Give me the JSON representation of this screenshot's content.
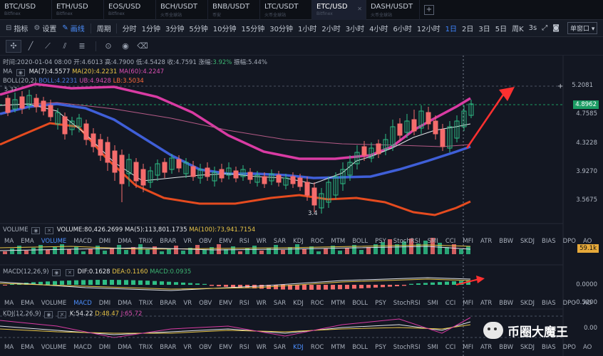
{
  "tabs": [
    {
      "pair": "BTC/USD",
      "sub": "Bitfinex"
    },
    {
      "pair": "ETH/USD",
      "sub": "Bitfinex"
    },
    {
      "pair": "EOS/USD",
      "sub": "Bitfinex"
    },
    {
      "pair": "BCH/USDT",
      "sub": "火币全球站"
    },
    {
      "pair": "BNB/USDT",
      "sub": "币安"
    },
    {
      "pair": "LTC/USDT",
      "sub": "火币全球站"
    },
    {
      "pair": "ETC/USD",
      "sub": "Bitfinex",
      "active": true
    },
    {
      "pair": "DASH/USDT",
      "sub": "火币全球站"
    }
  ],
  "tab_add": "+",
  "toolbar": {
    "indicator": "指标",
    "settings": "设置",
    "draw": "画线",
    "period_label": "周期",
    "periods": [
      "分时",
      "1分钟",
      "3分钟",
      "5分钟",
      "10分钟",
      "15分钟",
      "30分钟",
      "1小时",
      "2小时",
      "3小时",
      "4小时",
      "6小时",
      "12小时",
      "1日",
      "2日",
      "3日",
      "5日",
      "周K"
    ],
    "active_period": "1日",
    "refresh": "3s",
    "view_mode": "单窗口"
  },
  "draw_tools": [
    "crosshair-icon",
    "line-icon",
    "ray-icon",
    "parallel-icon",
    "fib-icon",
    "lock-icon",
    "eye-icon",
    "trash-icon"
  ],
  "ohlc": {
    "time_label": "时间:",
    "time": "2020-01-04 08:00",
    "open_label": "开:",
    "open": "4.6013",
    "high_label": "高:",
    "high": "4.7900",
    "low_label": "低:",
    "low": "4.5428",
    "close_label": "收:",
    "close": "4.7591",
    "change_label": "涨幅:",
    "change": "3.92%",
    "amp_label": "振幅:",
    "amp": "5.44%"
  },
  "ma": {
    "name": "MA",
    "ma7": "MA(7):4.5577",
    "ma20": "MA(20):4.2231",
    "ma60": "MA(60):4.2247"
  },
  "boll": {
    "name": "BOLL(20,2)",
    "mid": "BOLL:4.2231",
    "ub": "UB:4.9428",
    "lb": "LB:3.5034"
  },
  "high_marker": "5.37",
  "low_marker": "3.4",
  "price_axis": [
    "5.2081",
    "4.7585",
    "4.3228",
    "3.9270",
    "3.5675"
  ],
  "price_tag_green": "4.8962",
  "price_tag_plus": "+",
  "volume": {
    "name": "VOLUME",
    "volume": "VOLUME:80,426.2699",
    "ma5": "MA(5):113,801.1735",
    "ma100": "MA(100):73,941.7154",
    "axis_tag": "59.1k"
  },
  "macd": {
    "name": "MACD(12,26,9)",
    "dif": "DIF:0.1628",
    "dea": "DEA:0.1160",
    "macd": "MACD:0.0935",
    "axis": [
      "0.0000",
      "-0.5000"
    ]
  },
  "kdj": {
    "name": "KDJ(12,26,9)",
    "k": "K:54.22",
    "d": "D:48.47",
    "j": "J:65.72",
    "axis": "0.00"
  },
  "indicators": [
    "MA",
    "EMA",
    "VOLUME",
    "MACD",
    "DMI",
    "DMA",
    "TRIX",
    "BRAR",
    "VR",
    "OBV",
    "EMV",
    "RSI",
    "WR",
    "SAR",
    "KDJ",
    "ROC",
    "MTM",
    "BOLL",
    "PSY",
    "StochRSI",
    "SMI",
    "CCI",
    "MFI",
    "ATR",
    "BBW",
    "SKDJ",
    "BIAS",
    "DPO",
    "AO"
  ],
  "indicators_row2_active": "VOLUME",
  "indicators_row3_active": "MACD",
  "indicators_row4_active": "KDJ",
  "watermark": "币圈大魔王"
}
